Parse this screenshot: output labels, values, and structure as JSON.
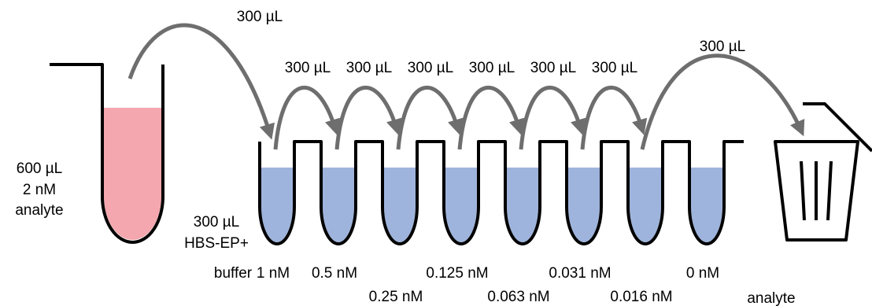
{
  "source_tube": {
    "volume": "600 µL",
    "concentration": "2 nM",
    "contents": "analyte"
  },
  "buffer": {
    "volume": "300 µL",
    "name": "HBS-EP+",
    "label": "buffer"
  },
  "transfers": [
    "300 µL",
    "300 µL",
    "300 µL",
    "300 µL",
    "300 µL",
    "300 µL",
    "300 µL",
    "300 µL"
  ],
  "wells": [
    {
      "concentration": "1 nM"
    },
    {
      "concentration": "0.5 nM"
    },
    {
      "concentration": "0.25 nM"
    },
    {
      "concentration": "0.125 nM"
    },
    {
      "concentration": "0.063 nM"
    },
    {
      "concentration": "0.031 nM"
    },
    {
      "concentration": "0.016 nM"
    },
    {
      "concentration": "0 nM"
    }
  ],
  "waste": {
    "label": "analyte"
  }
}
